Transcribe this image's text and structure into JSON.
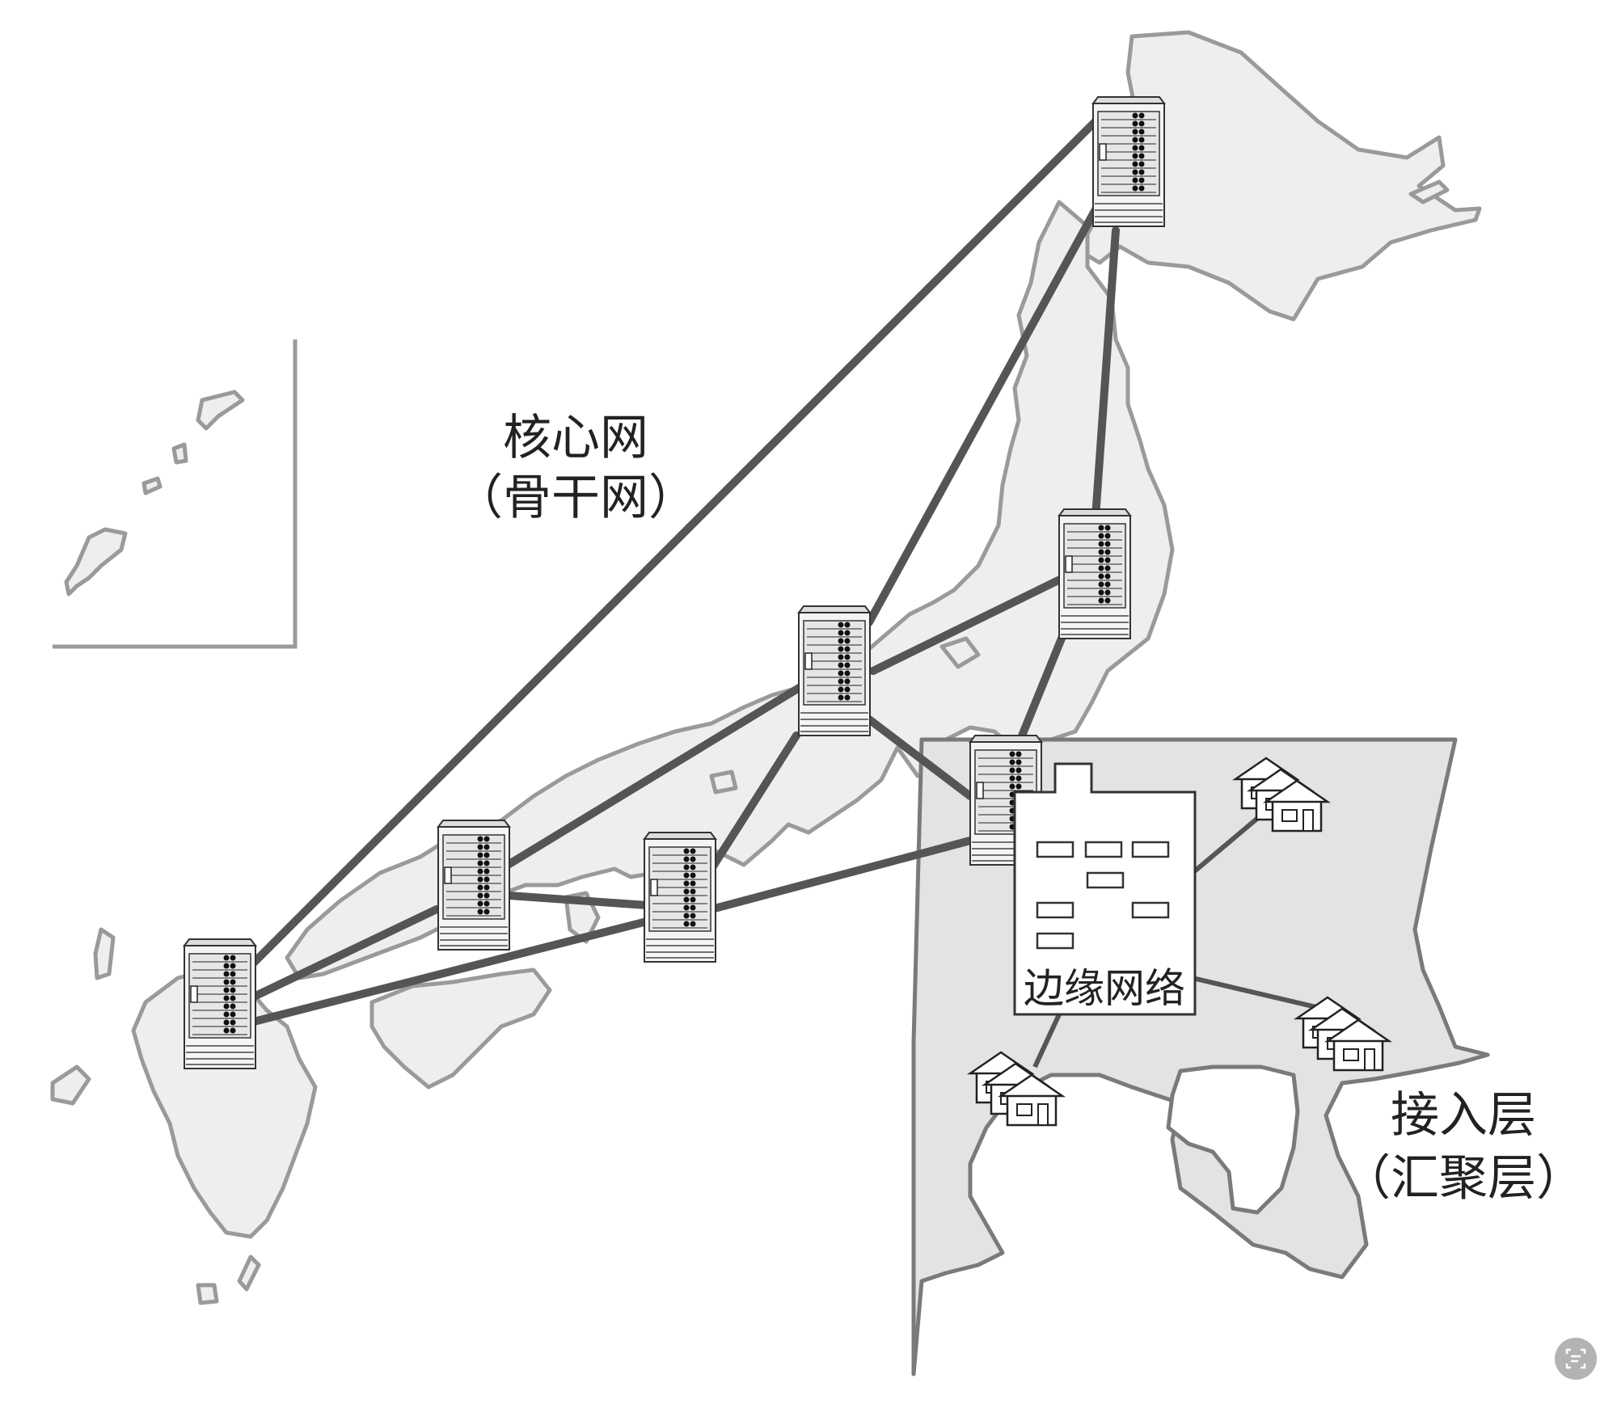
{
  "labels": {
    "core_line1": "核心网",
    "core_line2": "（骨干网）",
    "edge": "边缘网络",
    "access_line1": "接入层",
    "access_line2": "（汇聚层）"
  },
  "icons": {
    "server": "server-rack-icon",
    "house": "house-icon",
    "building": "office-building-icon",
    "ocr": "text-recognition-icon"
  },
  "colors": {
    "land": "#eeeeee",
    "land_outline": "#9a9a9a",
    "link": "#555555",
    "region": "#e3e3e3",
    "region_outline": "#7a7a7a"
  }
}
